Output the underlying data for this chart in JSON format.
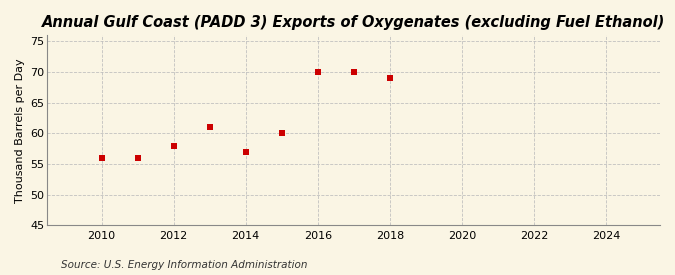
{
  "title": "Annual Gulf Coast (PADD 3) Exports of Oxygenates (excluding Fuel Ethanol)",
  "ylabel": "Thousand Barrels per Day",
  "source": "Source: U.S. Energy Information Administration",
  "x": [
    2010,
    2011,
    2012,
    2013,
    2014,
    2015,
    2016,
    2017,
    2018
  ],
  "y": [
    56,
    56,
    58,
    61,
    57,
    60,
    70,
    70,
    69
  ],
  "xlim": [
    2008.5,
    2025.5
  ],
  "ylim": [
    45,
    76
  ],
  "yticks": [
    45,
    50,
    55,
    60,
    65,
    70,
    75
  ],
  "xticks": [
    2010,
    2012,
    2014,
    2016,
    2018,
    2020,
    2022,
    2024
  ],
  "marker_color": "#cc0000",
  "marker": "s",
  "marker_size": 4,
  "background_color": "#faf5e4",
  "grid_color": "#bbbbbb",
  "title_fontsize": 10.5,
  "label_fontsize": 8,
  "tick_fontsize": 8,
  "source_fontsize": 7.5
}
